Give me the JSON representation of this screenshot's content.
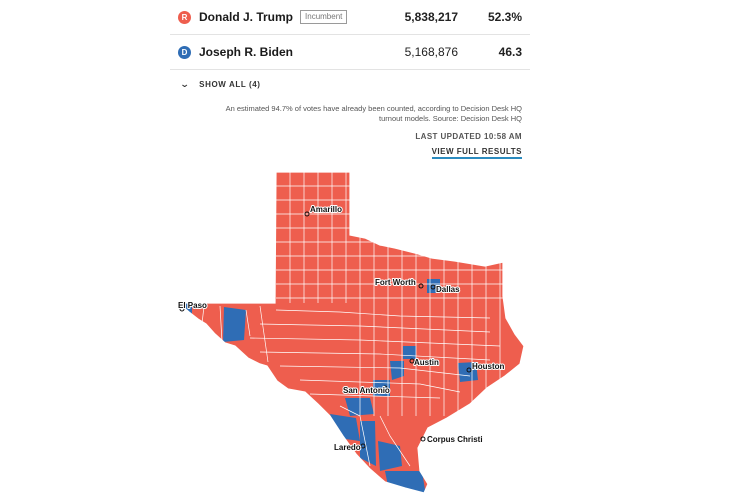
{
  "results": {
    "candidates": [
      {
        "badge": "R",
        "name": "Donald J. Trump",
        "tag": "Incumbent",
        "votes": "5,838,217",
        "pct": "52.3%",
        "color": "#ee5e4e"
      },
      {
        "badge": "D",
        "name": "Joseph R. Biden",
        "tag": "",
        "votes": "5,168,876",
        "pct": "46.3",
        "color": "#2f6db5"
      }
    ],
    "show_all": "SHOW ALL (4)",
    "note": "An estimated 94.7% of votes have already been counted, according to Decision Desk HQ turnout models. Source: Decision Desk HQ",
    "last_updated": "LAST UPDATED 10:58 AM",
    "view_full": "VIEW FULL RESULTS"
  },
  "map": {
    "republican_color": "#ee5e4e",
    "democratic_color": "#2f6db5",
    "border_color": "#ffffff",
    "cities": [
      "Amarillo",
      "El Paso",
      "Fort Worth",
      "Dallas",
      "Austin",
      "Houston",
      "San Antonio",
      "Corpus Christi",
      "Laredo"
    ]
  }
}
